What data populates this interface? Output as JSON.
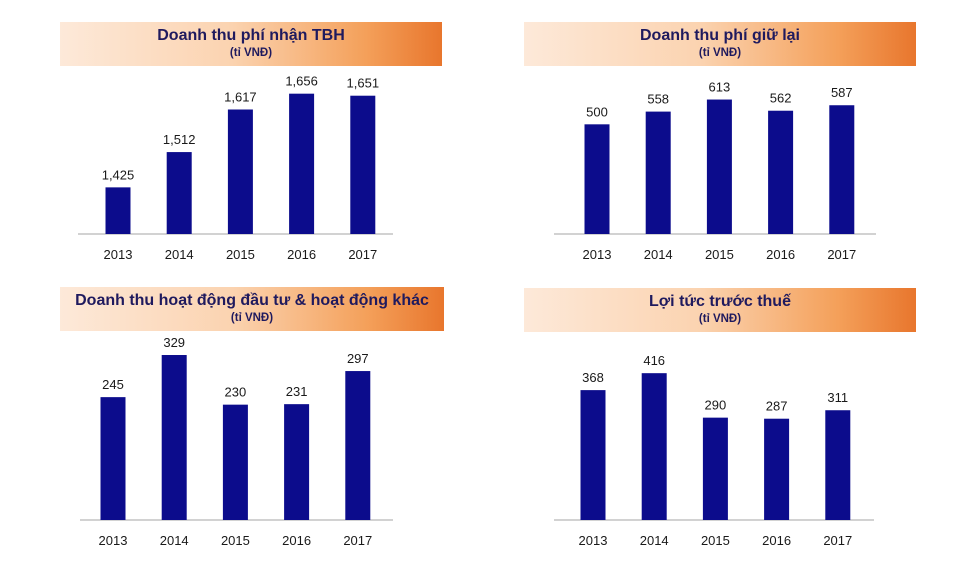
{
  "colors": {
    "bar": "#0c0c8c",
    "axis": "#a6a6a6",
    "title": "#1f1a5e"
  },
  "chart_data": [
    {
      "type": "bar",
      "title": "Doanh thu phí nhận TBH",
      "subtitle": "(tỉ VNĐ)",
      "categories": [
        "2013",
        "2014",
        "2015",
        "2016",
        "2017"
      ],
      "values": [
        1425,
        1512,
        1617,
        1656,
        1651
      ],
      "value_labels": [
        "1,425",
        "1,512",
        "1,617",
        "1,656",
        "1,651"
      ],
      "ylim": [
        1310,
        1670
      ],
      "grid": false,
      "legend": "none"
    },
    {
      "type": "bar",
      "title": "Doanh thu phí giữ lại",
      "subtitle": "(tỉ VNĐ)",
      "categories": [
        "2013",
        "2014",
        "2015",
        "2016",
        "2017"
      ],
      "values": [
        500,
        558,
        613,
        562,
        587
      ],
      "value_labels": [
        "500",
        "558",
        "613",
        "562",
        "587"
      ],
      "ylim": [
        0,
        620
      ],
      "grid": false,
      "legend": "none"
    },
    {
      "type": "bar",
      "title": "Doanh thu hoạt động đầu tư & hoạt động khác",
      "subtitle": "(tỉ VNĐ)",
      "categories": [
        "2013",
        "2014",
        "2015",
        "2016",
        "2017"
      ],
      "values": [
        245,
        329,
        230,
        231,
        297
      ],
      "value_labels": [
        "245",
        "329",
        "230",
        "231",
        "297"
      ],
      "ylim": [
        0,
        335
      ],
      "grid": false,
      "legend": "none"
    },
    {
      "type": "bar",
      "title": "Lợi tức trước thuế",
      "subtitle": "(tỉ VNĐ)",
      "categories": [
        "2013",
        "2014",
        "2015",
        "2016",
        "2017"
      ],
      "values": [
        368,
        416,
        290,
        287,
        311
      ],
      "value_labels": [
        "368",
        "416",
        "290",
        "287",
        "311"
      ],
      "ylim": [
        0,
        425
      ],
      "grid": false,
      "legend": "none"
    }
  ]
}
